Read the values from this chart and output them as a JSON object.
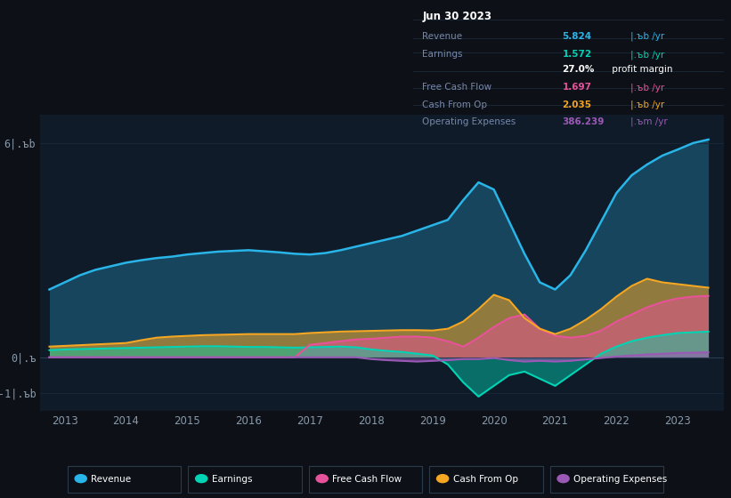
{
  "bg_color": "#0d1117",
  "plot_bg_color": "#0f1b28",
  "grid_color": "#1a2a3a",
  "years": [
    2012.75,
    2013.0,
    2013.25,
    2013.5,
    2013.75,
    2014.0,
    2014.25,
    2014.5,
    2014.75,
    2015.0,
    2015.25,
    2015.5,
    2015.75,
    2016.0,
    2016.25,
    2016.5,
    2016.75,
    2017.0,
    2017.25,
    2017.5,
    2017.75,
    2018.0,
    2018.25,
    2018.5,
    2018.75,
    2019.0,
    2019.25,
    2019.5,
    2019.75,
    2020.0,
    2020.25,
    2020.5,
    2020.75,
    2021.0,
    2021.25,
    2021.5,
    2021.75,
    2022.0,
    2022.25,
    2022.5,
    2022.75,
    2023.0,
    2023.25,
    2023.5
  ],
  "revenue": [
    1.9,
    2.1,
    2.3,
    2.45,
    2.55,
    2.65,
    2.72,
    2.78,
    2.82,
    2.88,
    2.92,
    2.96,
    2.98,
    3.0,
    2.97,
    2.94,
    2.9,
    2.88,
    2.92,
    3.0,
    3.1,
    3.2,
    3.3,
    3.4,
    3.55,
    3.7,
    3.85,
    4.4,
    4.9,
    4.7,
    3.8,
    2.9,
    2.1,
    1.9,
    2.3,
    3.0,
    3.8,
    4.6,
    5.1,
    5.4,
    5.65,
    5.82,
    6.0,
    6.1
  ],
  "earnings": [
    0.2,
    0.22,
    0.23,
    0.24,
    0.25,
    0.26,
    0.27,
    0.28,
    0.29,
    0.3,
    0.31,
    0.31,
    0.3,
    0.29,
    0.29,
    0.28,
    0.27,
    0.28,
    0.29,
    0.3,
    0.28,
    0.22,
    0.18,
    0.15,
    0.1,
    0.05,
    -0.2,
    -0.7,
    -1.1,
    -0.8,
    -0.5,
    -0.4,
    -0.6,
    -0.8,
    -0.5,
    -0.2,
    0.1,
    0.3,
    0.45,
    0.55,
    0.62,
    0.68,
    0.7,
    0.72
  ],
  "free_cash_flow": [
    0.0,
    0.0,
    0.0,
    0.0,
    0.0,
    0.0,
    0.0,
    0.0,
    0.0,
    0.0,
    0.0,
    0.0,
    0.0,
    0.0,
    0.0,
    0.0,
    0.0,
    0.35,
    0.4,
    0.45,
    0.5,
    0.52,
    0.55,
    0.58,
    0.58,
    0.55,
    0.45,
    0.3,
    0.55,
    0.85,
    1.1,
    1.2,
    0.8,
    0.6,
    0.55,
    0.6,
    0.75,
    1.0,
    1.2,
    1.4,
    1.55,
    1.65,
    1.7,
    1.72
  ],
  "cash_from_op": [
    0.3,
    0.32,
    0.34,
    0.36,
    0.38,
    0.4,
    0.48,
    0.55,
    0.58,
    0.6,
    0.62,
    0.63,
    0.64,
    0.65,
    0.65,
    0.65,
    0.65,
    0.68,
    0.7,
    0.72,
    0.73,
    0.74,
    0.75,
    0.76,
    0.76,
    0.75,
    0.8,
    1.0,
    1.35,
    1.75,
    1.6,
    1.1,
    0.8,
    0.65,
    0.8,
    1.05,
    1.35,
    1.7,
    2.0,
    2.2,
    2.1,
    2.05,
    2.0,
    1.95
  ],
  "op_expenses": [
    0.0,
    0.0,
    0.0,
    0.0,
    0.0,
    0.0,
    0.0,
    0.0,
    0.0,
    0.0,
    0.0,
    0.0,
    0.0,
    0.0,
    0.0,
    0.0,
    0.0,
    0.0,
    0.0,
    0.0,
    0.0,
    -0.05,
    -0.08,
    -0.1,
    -0.12,
    -0.1,
    -0.08,
    -0.05,
    -0.05,
    -0.02,
    -0.08,
    -0.12,
    -0.1,
    -0.12,
    -0.1,
    -0.06,
    -0.02,
    0.02,
    0.05,
    0.08,
    0.1,
    0.12,
    0.13,
    0.14
  ],
  "colors": {
    "revenue": "#29b5e8",
    "earnings": "#00d4b4",
    "free_cash_flow": "#e8529a",
    "cash_from_op": "#f5a623",
    "op_expenses": "#9b59b6"
  },
  "ylim": [
    -1.5,
    6.8
  ],
  "ytick_positions": [
    -1,
    0,
    6
  ],
  "ytick_labels": [
    "-1|.ъb",
    "0|.ъ",
    "6|.ъb"
  ],
  "xticks": [
    2013,
    2014,
    2015,
    2016,
    2017,
    2018,
    2019,
    2020,
    2021,
    2022,
    2023
  ],
  "xmin": 2012.6,
  "xmax": 2023.75,
  "legend_items": [
    {
      "label": "Revenue",
      "color": "#29b5e8"
    },
    {
      "label": "Earnings",
      "color": "#00d4b4"
    },
    {
      "label": "Free Cash Flow",
      "color": "#e8529a"
    },
    {
      "label": "Cash From Op",
      "color": "#f5a623"
    },
    {
      "label": "Operating Expenses",
      "color": "#9b59b6"
    }
  ],
  "infobox": {
    "date": "Jun 30 2023",
    "rows": [
      {
        "label": "Revenue",
        "value": "5.824",
        "unit": "|.ъb /yr",
        "color": "#29b5e8",
        "has_divider": true
      },
      {
        "label": "Earnings",
        "value": "1.572",
        "unit": "|.ъb /yr",
        "color": "#00d4b4",
        "has_divider": false
      },
      {
        "label": "",
        "value": "27.0%",
        "unit": " profit margin",
        "color": "#ffffff",
        "has_divider": true
      },
      {
        "label": "Free Cash Flow",
        "value": "1.697",
        "unit": "|.ъb /yr",
        "color": "#e8529a",
        "has_divider": true
      },
      {
        "label": "Cash From Op",
        "value": "2.035",
        "unit": "|.ъb /yr",
        "color": "#f5a623",
        "has_divider": true
      },
      {
        "label": "Operating Expenses",
        "value": "386.239",
        "unit": "|.ъm /yr",
        "color": "#9b59b6",
        "has_divider": true
      }
    ]
  }
}
